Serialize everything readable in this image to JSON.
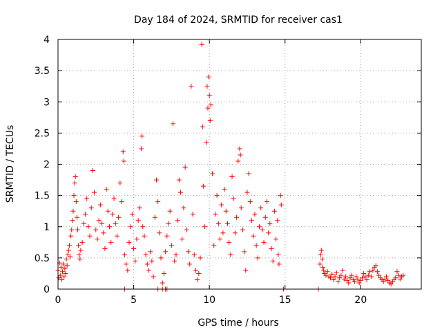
{
  "chart_data": {
    "type": "scatter",
    "title": "Day 184 of 2024, SRMTID for receiver cas1",
    "xlabel": "GPS time / hours",
    "ylabel": "SRMTID / TECUs",
    "xlim": [
      0,
      24
    ],
    "ylim": [
      0,
      4
    ],
    "xticks": [
      0,
      5,
      10,
      15,
      20
    ],
    "xtick_labels": [
      "0",
      "5",
      "10",
      "15",
      "20"
    ],
    "yticks": [
      0,
      0.5,
      1,
      1.5,
      2,
      2.5,
      3,
      3.5,
      4
    ],
    "ytick_labels": [
      "0",
      "0.5",
      "1",
      "1.5",
      "2",
      "2.5",
      "3",
      "3.5",
      "4"
    ],
    "grid": true,
    "marker": "+",
    "color": "#ff0000",
    "series": [
      {
        "name": "SRMTID",
        "points": [
          [
            0.0,
            0.3
          ],
          [
            0.05,
            0.18
          ],
          [
            0.1,
            0.42
          ],
          [
            0.15,
            0.22
          ],
          [
            0.2,
            0.35
          ],
          [
            0.25,
            0.15
          ],
          [
            0.3,
            0.28
          ],
          [
            0.35,
            0.4
          ],
          [
            0.4,
            0.2
          ],
          [
            0.45,
            0.33
          ],
          [
            0.5,
            0.25
          ],
          [
            0.55,
            0.48
          ],
          [
            0.6,
            0.38
          ],
          [
            0.65,
            0.55
          ],
          [
            0.7,
            0.62
          ],
          [
            0.75,
            0.7
          ],
          [
            0.8,
            0.52
          ],
          [
            0.85,
            0.85
          ],
          [
            0.9,
            0.95
          ],
          [
            0.95,
            1.1
          ],
          [
            1.0,
            1.25
          ],
          [
            1.05,
            1.5
          ],
          [
            1.1,
            1.7
          ],
          [
            1.15,
            1.8
          ],
          [
            1.2,
            1.4
          ],
          [
            1.25,
            1.15
          ],
          [
            1.3,
            0.95
          ],
          [
            1.35,
            0.7
          ],
          [
            1.4,
            0.55
          ],
          [
            1.45,
            0.48
          ],
          [
            1.5,
            0.62
          ],
          [
            1.6,
            0.75
          ],
          [
            1.7,
            1.05
          ],
          [
            1.8,
            1.2
          ],
          [
            1.9,
            1.45
          ],
          [
            2.0,
            1.0
          ],
          [
            2.1,
            0.85
          ],
          [
            2.2,
            1.3
          ],
          [
            2.3,
            1.9
          ],
          [
            2.4,
            1.55
          ],
          [
            2.5,
            0.95
          ],
          [
            2.6,
            0.8
          ],
          [
            2.7,
            1.1
          ],
          [
            2.8,
            1.35
          ],
          [
            2.9,
            1.05
          ],
          [
            3.0,
            0.9
          ],
          [
            3.1,
            0.65
          ],
          [
            3.2,
            1.6
          ],
          [
            3.3,
            1.25
          ],
          [
            3.4,
            1.0
          ],
          [
            3.5,
            0.75
          ],
          [
            3.6,
            1.2
          ],
          [
            3.7,
            1.45
          ],
          [
            3.8,
            1.05
          ],
          [
            3.9,
            0.85
          ],
          [
            4.0,
            1.15
          ],
          [
            4.1,
            1.7
          ],
          [
            4.2,
            1.4
          ],
          [
            4.3,
            2.2
          ],
          [
            4.35,
            2.05
          ],
          [
            4.4,
            0.55
          ],
          [
            4.5,
            0.4
          ],
          [
            4.6,
            0.3
          ],
          [
            4.7,
            0.75
          ],
          [
            4.8,
            1.0
          ],
          [
            4.9,
            1.2
          ],
          [
            5.0,
            0.65
          ],
          [
            5.1,
            0.45
          ],
          [
            5.2,
            0.8
          ],
          [
            5.3,
            1.1
          ],
          [
            5.4,
            1.3
          ],
          [
            5.5,
            2.25
          ],
          [
            5.55,
            2.45
          ],
          [
            5.6,
            1.0
          ],
          [
            5.7,
            0.85
          ],
          [
            5.8,
            0.55
          ],
          [
            5.9,
            0.4
          ],
          [
            6.0,
            0.3
          ],
          [
            6.1,
            0.6
          ],
          [
            6.2,
            0.45
          ],
          [
            6.3,
            0.2
          ],
          [
            6.4,
            1.15
          ],
          [
            6.5,
            1.75
          ],
          [
            6.6,
            1.4
          ],
          [
            6.7,
            0.9
          ],
          [
            6.8,
            0.5
          ],
          [
            6.9,
            0.1
          ],
          [
            7.0,
            0.25
          ],
          [
            7.1,
            0.6
          ],
          [
            7.2,
            0.85
          ],
          [
            7.3,
            1.05
          ],
          [
            7.4,
            1.25
          ],
          [
            7.5,
            0.7
          ],
          [
            7.6,
            2.65
          ],
          [
            7.7,
            0.45
          ],
          [
            7.8,
            0.55
          ],
          [
            7.9,
            1.1
          ],
          [
            8.0,
            1.75
          ],
          [
            8.1,
            1.55
          ],
          [
            8.2,
            0.8
          ],
          [
            8.3,
            1.3
          ],
          [
            8.4,
            1.95
          ],
          [
            8.5,
            0.95
          ],
          [
            8.6,
            0.6
          ],
          [
            8.7,
            0.4
          ],
          [
            8.8,
            3.25
          ],
          [
            8.9,
            1.2
          ],
          [
            9.0,
            0.55
          ],
          [
            9.1,
            0.3
          ],
          [
            9.2,
            0.15
          ],
          [
            9.3,
            0.25
          ],
          [
            9.4,
            0.5
          ],
          [
            9.5,
            3.92
          ],
          [
            9.55,
            2.6
          ],
          [
            9.6,
            1.65
          ],
          [
            9.7,
            1.0
          ],
          [
            9.8,
            2.35
          ],
          [
            9.85,
            3.25
          ],
          [
            9.9,
            2.9
          ],
          [
            9.95,
            3.4
          ],
          [
            10.0,
            3.1
          ],
          [
            10.05,
            2.7
          ],
          [
            10.1,
            2.95
          ],
          [
            10.2,
            1.85
          ],
          [
            10.3,
            0.7
          ],
          [
            10.4,
            1.2
          ],
          [
            10.5,
            1.5
          ],
          [
            10.6,
            1.05
          ],
          [
            10.7,
            0.8
          ],
          [
            10.8,
            1.35
          ],
          [
            10.9,
            0.9
          ],
          [
            11.0,
            1.6
          ],
          [
            11.1,
            1.25
          ],
          [
            11.2,
            1.05
          ],
          [
            11.3,
            0.75
          ],
          [
            11.4,
            0.55
          ],
          [
            11.5,
            1.8
          ],
          [
            11.6,
            1.45
          ],
          [
            11.7,
            0.9
          ],
          [
            11.8,
            1.15
          ],
          [
            11.9,
            2.05
          ],
          [
            12.0,
            2.25
          ],
          [
            12.05,
            2.15
          ],
          [
            12.1,
            1.3
          ],
          [
            12.2,
            0.95
          ],
          [
            12.3,
            0.6
          ],
          [
            12.4,
            0.3
          ],
          [
            12.5,
            1.55
          ],
          [
            12.6,
            1.85
          ],
          [
            12.7,
            1.4
          ],
          [
            12.8,
            1.1
          ],
          [
            12.9,
            0.85
          ],
          [
            13.0,
            1.2
          ],
          [
            13.1,
            0.7
          ],
          [
            13.2,
            0.5
          ],
          [
            13.3,
            1.0
          ],
          [
            13.4,
            1.3
          ],
          [
            13.5,
            0.95
          ],
          [
            13.6,
            0.75
          ],
          [
            13.7,
            1.15
          ],
          [
            13.8,
            1.4
          ],
          [
            13.9,
            0.9
          ],
          [
            14.0,
            1.05
          ],
          [
            14.1,
            0.65
          ],
          [
            14.2,
            0.45
          ],
          [
            14.3,
            1.25
          ],
          [
            14.4,
            0.8
          ],
          [
            14.5,
            1.1
          ],
          [
            14.55,
            0.55
          ],
          [
            14.6,
            0.4
          ],
          [
            14.7,
            1.5
          ],
          [
            14.75,
            1.35
          ],
          [
            4.4,
            0.0
          ],
          [
            6.6,
            0.0
          ],
          [
            6.9,
            0.0
          ],
          [
            7.1,
            0.0
          ],
          [
            7.2,
            0.0
          ],
          [
            14.9,
            0.0
          ],
          [
            17.2,
            0.0
          ],
          [
            17.3,
            0.4
          ],
          [
            17.35,
            0.55
          ],
          [
            17.4,
            0.62
          ],
          [
            17.45,
            0.48
          ],
          [
            17.5,
            0.35
          ],
          [
            17.55,
            0.3
          ],
          [
            17.6,
            0.25
          ],
          [
            17.7,
            0.22
          ],
          [
            17.8,
            0.28
          ],
          [
            17.9,
            0.2
          ],
          [
            18.0,
            0.18
          ],
          [
            18.1,
            0.24
          ],
          [
            18.2,
            0.15
          ],
          [
            18.3,
            0.2
          ],
          [
            18.4,
            0.26
          ],
          [
            18.5,
            0.12
          ],
          [
            18.6,
            0.18
          ],
          [
            18.7,
            0.22
          ],
          [
            18.8,
            0.3
          ],
          [
            18.9,
            0.16
          ],
          [
            19.0,
            0.2
          ],
          [
            19.1,
            0.14
          ],
          [
            19.2,
            0.1
          ],
          [
            19.3,
            0.18
          ],
          [
            19.4,
            0.22
          ],
          [
            19.5,
            0.15
          ],
          [
            19.6,
            0.12
          ],
          [
            19.7,
            0.2
          ],
          [
            19.8,
            0.16
          ],
          [
            19.9,
            0.1
          ],
          [
            20.0,
            0.14
          ],
          [
            20.1,
            0.18
          ],
          [
            20.2,
            0.25
          ],
          [
            20.3,
            0.2
          ],
          [
            20.4,
            0.15
          ],
          [
            20.5,
            0.22
          ],
          [
            20.6,
            0.28
          ],
          [
            20.7,
            0.2
          ],
          [
            20.8,
            0.3
          ],
          [
            20.9,
            0.35
          ],
          [
            21.0,
            0.38
          ],
          [
            21.1,
            0.28
          ],
          [
            21.2,
            0.22
          ],
          [
            21.3,
            0.18
          ],
          [
            21.4,
            0.15
          ],
          [
            21.5,
            0.12
          ],
          [
            21.6,
            0.16
          ],
          [
            21.7,
            0.2
          ],
          [
            21.8,
            0.14
          ],
          [
            21.9,
            0.1
          ],
          [
            22.0,
            0.08
          ],
          [
            22.1,
            0.12
          ],
          [
            22.2,
            0.15
          ],
          [
            22.3,
            0.18
          ],
          [
            22.4,
            0.28
          ],
          [
            22.5,
            0.22
          ],
          [
            22.6,
            0.16
          ],
          [
            22.7,
            0.2
          ],
          [
            22.8,
            0.22
          ]
        ]
      }
    ]
  }
}
